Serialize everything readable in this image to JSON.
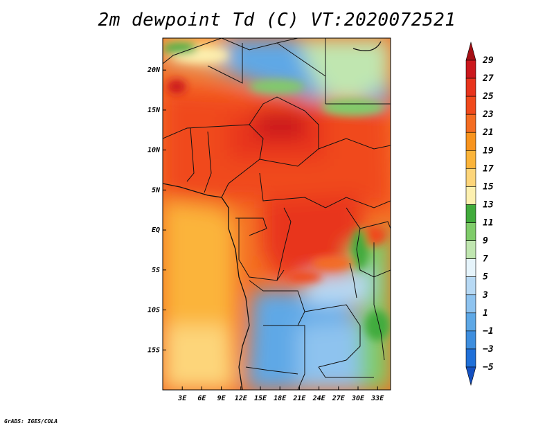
{
  "title": "2m dewpoint Td (C) VT:2020072521",
  "credit": "GrADS: IGES/COLA",
  "chart_data": {
    "type": "heatmap",
    "variable": "2m dewpoint Td (C)",
    "valid_time": "2020072521",
    "lon_range": [
      0,
      35
    ],
    "lat_range": [
      -20,
      24
    ],
    "x_ticks": [
      {
        "value": 3,
        "label": "3E"
      },
      {
        "value": 6,
        "label": "6E"
      },
      {
        "value": 9,
        "label": "9E"
      },
      {
        "value": 12,
        "label": "12E"
      },
      {
        "value": 15,
        "label": "15E"
      },
      {
        "value": 18,
        "label": "18E"
      },
      {
        "value": 21,
        "label": "21E"
      },
      {
        "value": 24,
        "label": "24E"
      },
      {
        "value": 27,
        "label": "27E"
      },
      {
        "value": 30,
        "label": "30E"
      },
      {
        "value": 33,
        "label": "33E"
      }
    ],
    "y_ticks": [
      {
        "value": 20,
        "label": "20N"
      },
      {
        "value": 15,
        "label": "15N"
      },
      {
        "value": 10,
        "label": "10N"
      },
      {
        "value": 5,
        "label": "5N"
      },
      {
        "value": 0,
        "label": "EQ"
      },
      {
        "value": -5,
        "label": "5S"
      },
      {
        "value": -10,
        "label": "10S"
      },
      {
        "value": -15,
        "label": "15S"
      }
    ],
    "colorbar": {
      "levels": [
        "29",
        "27",
        "25",
        "23",
        "21",
        "19",
        "17",
        "15",
        "13",
        "11",
        "9",
        "7",
        "5",
        "3",
        "1",
        "−1",
        "−3",
        "−5"
      ],
      "colors": [
        "#a50f15",
        "#cb181d",
        "#e8341d",
        "#f04a1c",
        "#f46d22",
        "#f8941e",
        "#fbb43a",
        "#fdd57a",
        "#fdf0b0",
        "#41ab3c",
        "#7fcc6a",
        "#c0e6b0",
        "#e6f4fb",
        "#b7d9f4",
        "#8ec3ef",
        "#5ea8e6",
        "#3e8ede",
        "#2070d8",
        "#1450c0"
      ]
    }
  }
}
